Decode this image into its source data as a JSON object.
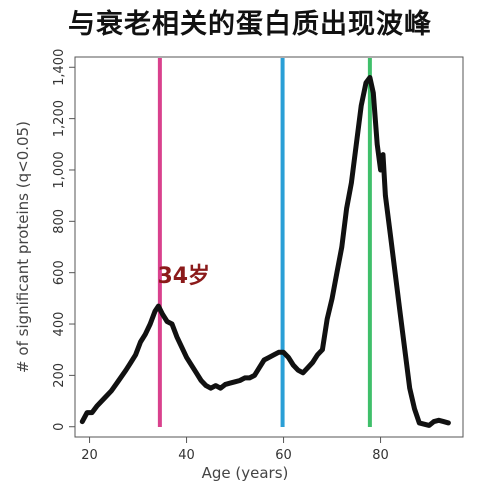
{
  "chart_data": {
    "type": "line",
    "title": "与衰老相关的蛋白质出现波峰",
    "xlabel": "Age (years)",
    "ylabel": "# of significant proteins (q<0.05)",
    "xlim": [
      17,
      97
    ],
    "ylim": [
      -40,
      1440
    ],
    "xticks": [
      20,
      40,
      60,
      80
    ],
    "yticks": [
      0,
      200,
      400,
      600,
      800,
      1000,
      1200,
      1400
    ],
    "ytick_labels": [
      "0",
      "200",
      "400",
      "600",
      "800",
      "1,000",
      "1,200",
      "1,400"
    ],
    "grid": false,
    "series": [
      {
        "color": "#111111",
        "points": [
          [
            18.5,
            20
          ],
          [
            19.5,
            55
          ],
          [
            20.5,
            55
          ],
          [
            21.5,
            80
          ],
          [
            23,
            110
          ],
          [
            24.5,
            140
          ],
          [
            26,
            180
          ],
          [
            27.5,
            220
          ],
          [
            28.5,
            250
          ],
          [
            29.5,
            280
          ],
          [
            30.5,
            330
          ],
          [
            31.5,
            360
          ],
          [
            32.5,
            400
          ],
          [
            33.5,
            450
          ],
          [
            34.2,
            470
          ],
          [
            35,
            440
          ],
          [
            36,
            410
          ],
          [
            37,
            400
          ],
          [
            38,
            350
          ],
          [
            39,
            310
          ],
          [
            40,
            270
          ],
          [
            41,
            240
          ],
          [
            42,
            210
          ],
          [
            43,
            180
          ],
          [
            44,
            160
          ],
          [
            45,
            150
          ],
          [
            46,
            160
          ],
          [
            47,
            150
          ],
          [
            48,
            165
          ],
          [
            49,
            170
          ],
          [
            50,
            175
          ],
          [
            51,
            180
          ],
          [
            52,
            190
          ],
          [
            53,
            190
          ],
          [
            54,
            200
          ],
          [
            55,
            230
          ],
          [
            56,
            260
          ],
          [
            57,
            270
          ],
          [
            58,
            280
          ],
          [
            59,
            290
          ],
          [
            60,
            290
          ],
          [
            61,
            270
          ],
          [
            62,
            240
          ],
          [
            63,
            220
          ],
          [
            64,
            210
          ],
          [
            65,
            230
          ],
          [
            66,
            250
          ],
          [
            67,
            280
          ],
          [
            68,
            300
          ],
          [
            69,
            420
          ],
          [
            70,
            500
          ],
          [
            71,
            600
          ],
          [
            72,
            700
          ],
          [
            73,
            850
          ],
          [
            74,
            950
          ],
          [
            75,
            1100
          ],
          [
            76,
            1250
          ],
          [
            77,
            1340
          ],
          [
            77.8,
            1360
          ],
          [
            78.5,
            1300
          ],
          [
            79.3,
            1100
          ],
          [
            80,
            1000
          ],
          [
            80.5,
            1060
          ],
          [
            81,
            900
          ],
          [
            82,
            750
          ],
          [
            83,
            600
          ],
          [
            84,
            450
          ],
          [
            85,
            300
          ],
          [
            86,
            150
          ],
          [
            87,
            70
          ],
          [
            88,
            15
          ],
          [
            89,
            10
          ],
          [
            90,
            5
          ],
          [
            91,
            20
          ],
          [
            92,
            25
          ],
          [
            93,
            20
          ],
          [
            94,
            15
          ]
        ]
      }
    ],
    "reference_lines": [
      {
        "x": 34.5,
        "color": "#d9418d"
      },
      {
        "x": 59.8,
        "color": "#2a9fd6"
      },
      {
        "x": 77.8,
        "color": "#3fbf6a"
      }
    ],
    "annotations": [
      {
        "text": "34岁",
        "x": 34,
        "y": 560
      }
    ]
  }
}
